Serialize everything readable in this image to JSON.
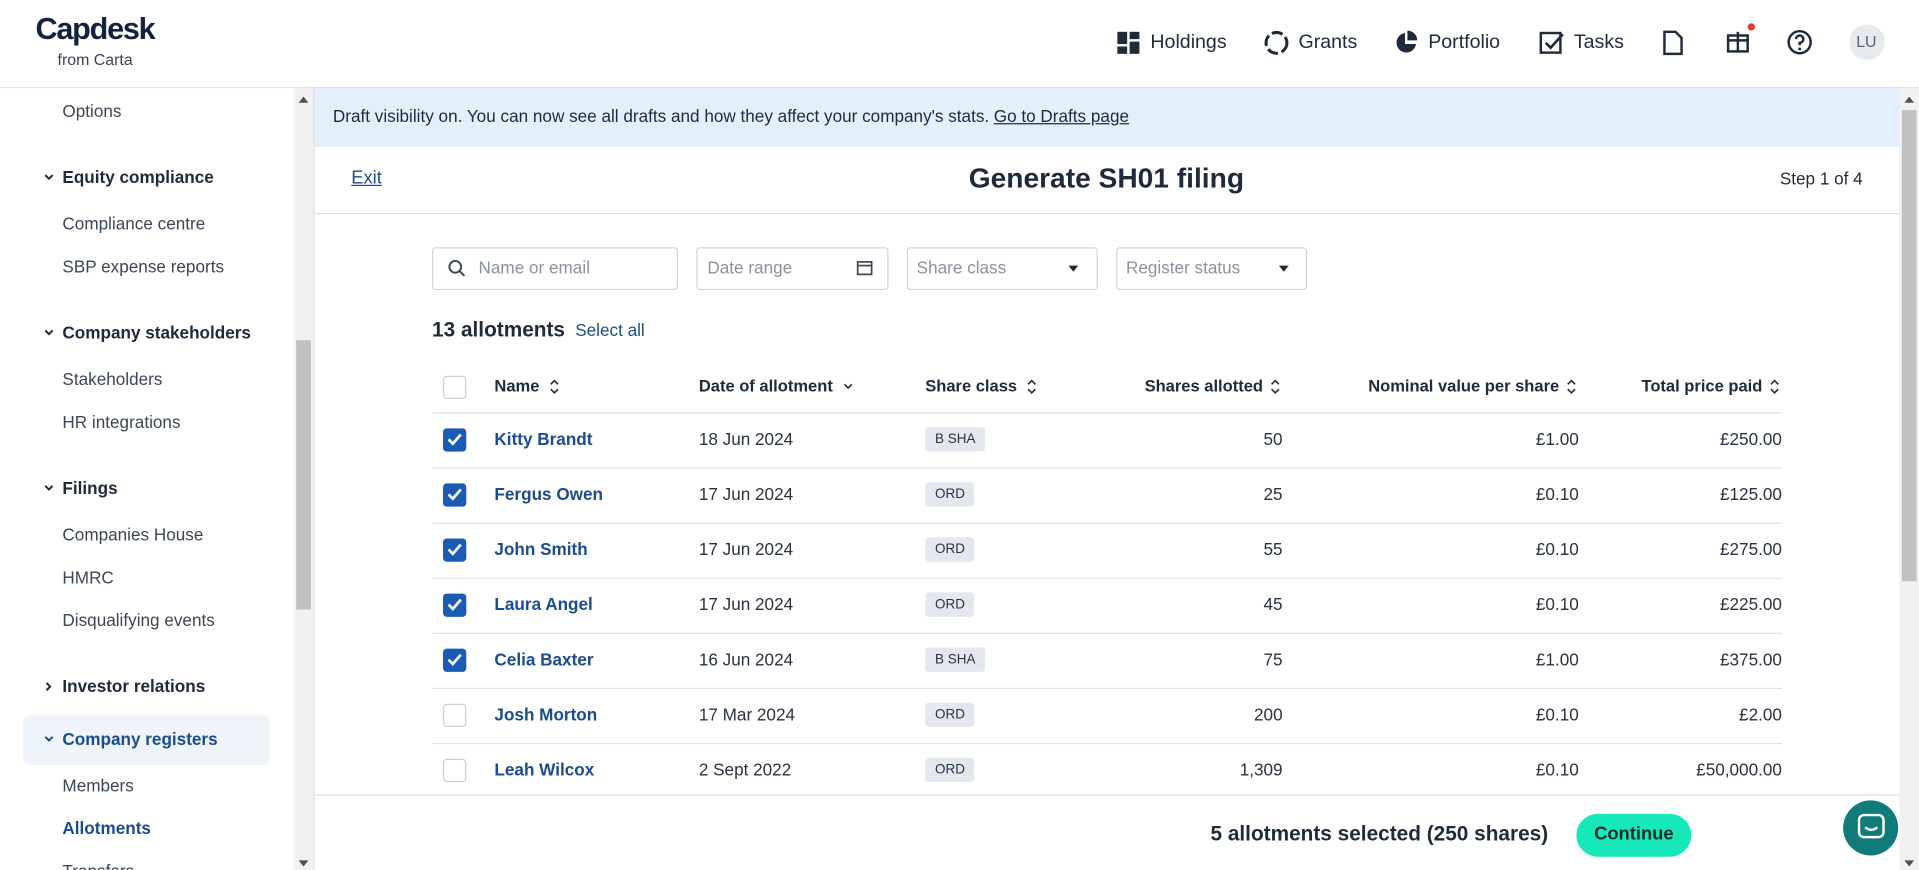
{
  "logo": {
    "name": "Capdesk",
    "sub": "from Carta"
  },
  "nav": [
    "Holdings",
    "Grants",
    "Portfolio",
    "Tasks"
  ],
  "avatar": "LU",
  "sidebar": {
    "top": [
      "Options"
    ],
    "sections": [
      {
        "title": "Equity compliance",
        "expanded": true,
        "active": false,
        "links": [
          "Compliance centre",
          "SBP expense reports"
        ]
      },
      {
        "title": "Company stakeholders",
        "expanded": true,
        "active": false,
        "links": [
          "Stakeholders",
          "HR integrations"
        ]
      },
      {
        "title": "Filings",
        "expanded": true,
        "active": false,
        "links": [
          "Companies House",
          "HMRC",
          "Disqualifying events"
        ]
      },
      {
        "title": "Investor relations",
        "expanded": false,
        "active": false,
        "links": []
      },
      {
        "title": "Company registers",
        "expanded": true,
        "active": true,
        "links": [
          "Members",
          "Allotments",
          "Transfers"
        ],
        "current": 1
      }
    ]
  },
  "banner": {
    "text": "Draft visibility on. You can now see all drafts and how they affect your company's stats.",
    "link": "Go to Drafts page"
  },
  "header": {
    "exit": "Exit",
    "title": "Generate SH01 filing",
    "step": "Step 1 of 4"
  },
  "filters": {
    "search": "Name or email",
    "date": "Date range",
    "share_class": "Share class",
    "register_status": "Register status"
  },
  "count": "13 allotments",
  "select_all": "Select all",
  "table": {
    "columns": [
      "Name",
      "Date of allotment",
      "Share class",
      "Shares allotted",
      "Nominal value per share",
      "Total price paid"
    ],
    "rows": [
      {
        "checked": true,
        "cells": [
          "Kitty Brandt",
          "18 Jun 2024",
          "B SHA",
          "50",
          "£1.00",
          "£250.00"
        ]
      },
      {
        "checked": true,
        "cells": [
          "Fergus Owen",
          "17 Jun 2024",
          "ORD",
          "25",
          "£0.10",
          "£125.00"
        ]
      },
      {
        "checked": true,
        "cells": [
          "John Smith",
          "17 Jun 2024",
          "ORD",
          "55",
          "£0.10",
          "£275.00"
        ]
      },
      {
        "checked": true,
        "cells": [
          "Laura Angel",
          "17 Jun 2024",
          "ORD",
          "45",
          "£0.10",
          "£225.00"
        ]
      },
      {
        "checked": true,
        "cells": [
          "Celia Baxter",
          "16 Jun 2024",
          "B SHA",
          "75",
          "£1.00",
          "£375.00"
        ]
      },
      {
        "checked": false,
        "cells": [
          "Josh Morton",
          "17 Mar 2024",
          "ORD",
          "200",
          "£0.10",
          "£2.00"
        ]
      },
      {
        "checked": false,
        "cells": [
          "Leah Wilcox",
          "2 Sept 2022",
          "ORD",
          "1,309",
          "£0.10",
          "£50,000.00"
        ]
      }
    ]
  },
  "footer": {
    "summary": "5 allotments selected (250 shares)",
    "button": "Continue"
  }
}
